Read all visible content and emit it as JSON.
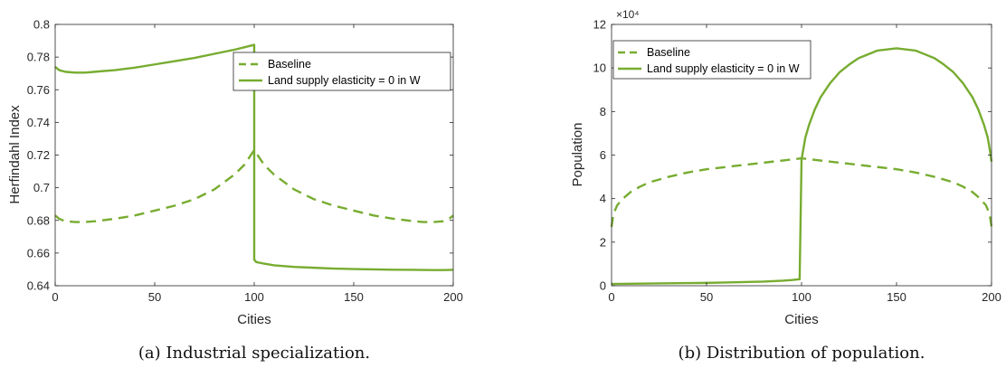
{
  "colors": {
    "series": "#77AC30",
    "axis": "#262626",
    "frame": "#000000"
  },
  "panels": [
    {
      "caption": "(a)  Industrial specialization.",
      "multiplier": "",
      "legend": [
        "Baseline",
        "Land supply elasticity = 0 in W"
      ]
    },
    {
      "caption": "(b)  Distribution of population.",
      "multiplier": "×10⁴",
      "legend": [
        "Baseline",
        "Land supply elasticity = 0 in W"
      ]
    }
  ],
  "chart_data": [
    {
      "type": "line",
      "title": "",
      "xlabel": "Cities",
      "ylabel": "Herfindahl Index",
      "xlim": [
        0,
        200
      ],
      "ylim": [
        0.64,
        0.8
      ],
      "xticks": [
        0,
        50,
        100,
        150,
        200
      ],
      "yticks": [
        0.64,
        0.66,
        0.68,
        0.7,
        0.72,
        0.74,
        0.76,
        0.78,
        0.8
      ],
      "ytick_labels": [
        "0.64",
        "0.66",
        "0.68",
        "0.7",
        "0.72",
        "0.74",
        "0.76",
        "0.78",
        "0.8"
      ],
      "legend_position": "top-right",
      "grid": false,
      "series": [
        {
          "name": "Baseline",
          "style": "dashed",
          "x": [
            0,
            2,
            5,
            10,
            15,
            20,
            30,
            40,
            50,
            60,
            70,
            80,
            90,
            95,
            100,
            105,
            110,
            120,
            130,
            140,
            150,
            160,
            170,
            180,
            185,
            190,
            195,
            198,
            200
          ],
          "y": [
            0.683,
            0.681,
            0.6795,
            0.679,
            0.679,
            0.6795,
            0.681,
            0.683,
            0.686,
            0.689,
            0.693,
            0.699,
            0.708,
            0.714,
            0.723,
            0.714,
            0.708,
            0.699,
            0.693,
            0.689,
            0.686,
            0.683,
            0.681,
            0.6795,
            0.679,
            0.679,
            0.6795,
            0.681,
            0.683
          ]
        },
        {
          "name": "Land supply elasticity = 0 in W",
          "style": "solid",
          "x": [
            0,
            2,
            5,
            10,
            15,
            20,
            30,
            40,
            50,
            60,
            70,
            80,
            90,
            95,
            100,
            100.0001,
            101,
            105,
            110,
            120,
            130,
            140,
            150,
            160,
            170,
            180,
            190,
            195,
            200
          ],
          "y": [
            0.774,
            0.772,
            0.771,
            0.7705,
            0.7705,
            0.771,
            0.772,
            0.7735,
            0.7755,
            0.7775,
            0.7795,
            0.782,
            0.7845,
            0.786,
            0.7875,
            0.656,
            0.6545,
            0.6535,
            0.6525,
            0.6515,
            0.651,
            0.6505,
            0.6502,
            0.65,
            0.6498,
            0.6497,
            0.6496,
            0.6496,
            0.6497
          ]
        }
      ]
    },
    {
      "type": "line",
      "title": "",
      "xlabel": "Cities",
      "ylabel": "Population",
      "xlim": [
        0,
        200
      ],
      "ylim": [
        0,
        12
      ],
      "xticks": [
        0,
        50,
        100,
        150,
        200
      ],
      "yticks": [
        0,
        2,
        4,
        6,
        8,
        10,
        12
      ],
      "ytick_labels": [
        "0",
        "2",
        "4",
        "6",
        "8",
        "10",
        "12"
      ],
      "y_multiplier": "×10⁴",
      "legend_position": "top-left",
      "grid": false,
      "series": [
        {
          "name": "Baseline",
          "style": "dashed",
          "x": [
            0,
            1,
            3,
            6,
            10,
            15,
            20,
            30,
            40,
            50,
            60,
            70,
            80,
            90,
            100,
            110,
            120,
            130,
            140,
            150,
            160,
            170,
            180,
            185,
            190,
            194,
            197,
            199,
            200
          ],
          "y": [
            2.7,
            3.3,
            3.7,
            4.0,
            4.3,
            4.55,
            4.75,
            5.0,
            5.2,
            5.35,
            5.45,
            5.55,
            5.65,
            5.75,
            5.85,
            5.75,
            5.65,
            5.55,
            5.45,
            5.35,
            5.2,
            5.0,
            4.75,
            4.55,
            4.3,
            4.0,
            3.7,
            3.3,
            2.7
          ]
        },
        {
          "name": "Land supply elasticity = 0 in W",
          "style": "solid",
          "x": [
            0,
            10,
            20,
            30,
            40,
            50,
            60,
            70,
            80,
            90,
            95,
            99,
            100,
            100.5,
            101,
            102,
            104,
            107,
            110,
            115,
            120,
            125,
            130,
            140,
            150,
            160,
            170,
            175,
            180,
            185,
            190,
            193,
            196,
            198,
            199,
            200
          ],
          "y": [
            0.08,
            0.09,
            0.1,
            0.11,
            0.12,
            0.13,
            0.15,
            0.17,
            0.19,
            0.23,
            0.26,
            0.3,
            5.8,
            6.05,
            6.3,
            6.8,
            7.4,
            8.1,
            8.65,
            9.3,
            9.8,
            10.15,
            10.45,
            10.8,
            10.9,
            10.8,
            10.45,
            10.15,
            9.8,
            9.3,
            8.65,
            8.1,
            7.4,
            6.8,
            6.3,
            5.7
          ]
        }
      ]
    }
  ]
}
